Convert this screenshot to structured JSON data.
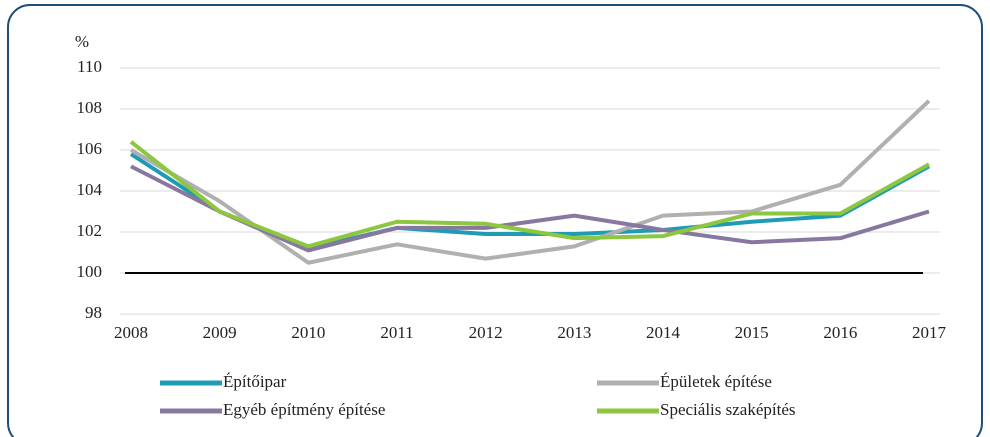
{
  "chart_data": {
    "type": "line",
    "y_unit_label": "%",
    "categories": [
      "2008",
      "2009",
      "2010",
      "2011",
      "2012",
      "2013",
      "2014",
      "2015",
      "2016",
      "2017"
    ],
    "series": [
      {
        "name": "Építőipar",
        "color": "#1f9bb5",
        "values": [
          105.8,
          103.0,
          101.2,
          102.2,
          101.9,
          101.9,
          102.1,
          102.5,
          102.8,
          105.2
        ]
      },
      {
        "name": "Épületek építése",
        "color": "#b0b0b0",
        "values": [
          106.0,
          103.5,
          100.5,
          101.4,
          100.7,
          101.3,
          102.8,
          103.0,
          104.3,
          108.4
        ]
      },
      {
        "name": "Egyéb építmény építése",
        "color": "#8878a0",
        "values": [
          105.2,
          103.0,
          101.1,
          102.2,
          102.2,
          102.8,
          102.1,
          101.5,
          101.7,
          103.0
        ]
      },
      {
        "name": "Speciális szaképítés",
        "color": "#8dc63f",
        "values": [
          106.4,
          103.0,
          101.3,
          102.5,
          102.4,
          101.7,
          101.8,
          102.9,
          102.9,
          105.3
        ]
      }
    ],
    "reference_line": 100,
    "ylim": [
      98,
      110
    ],
    "yticks": [
      98,
      100,
      102,
      104,
      106,
      108,
      110
    ],
    "grid": true
  }
}
